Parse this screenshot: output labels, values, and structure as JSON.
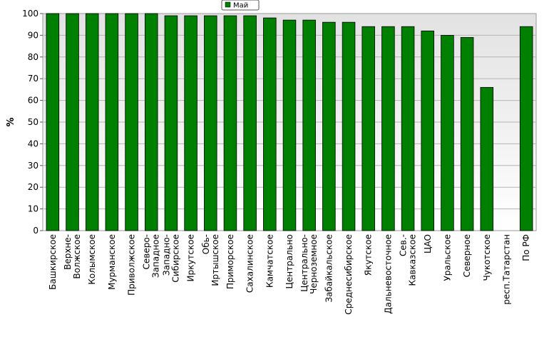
{
  "chart_data": {
    "type": "bar",
    "ylabel": "%",
    "ylim": [
      0,
      100
    ],
    "yticks": [
      0,
      10,
      20,
      30,
      40,
      50,
      60,
      70,
      80,
      90,
      100
    ],
    "grid": true,
    "legend_position": "top-center",
    "categories": [
      [
        "Башкирское"
      ],
      [
        "Верхне-",
        "Волжское"
      ],
      [
        "Колымское"
      ],
      [
        "Мурманское"
      ],
      [
        "Приволжское"
      ],
      [
        "Северо-",
        "Западное"
      ],
      [
        "Западно-",
        "Сибирское"
      ],
      [
        "Иркутское"
      ],
      [
        "Обь-",
        "Иртышское"
      ],
      [
        "Приморское"
      ],
      [
        "Сахалинское"
      ],
      [
        "Камчатское"
      ],
      [
        "Центрально"
      ],
      [
        "Центрально-",
        "Черноземное"
      ],
      [
        "Забайкальское"
      ],
      [
        "Среднесибирское"
      ],
      [
        "Якутское"
      ],
      [
        "Дальневосточное"
      ],
      [
        "Сев.-",
        "Кавказское"
      ],
      [
        "ЦАО"
      ],
      [
        "Уральское"
      ],
      [
        "Северное"
      ],
      [
        "Чукотское"
      ],
      [
        "респ.Татарстан"
      ],
      [
        "По РФ"
      ]
    ],
    "series": [
      {
        "name": "Май",
        "color": "#008000",
        "values": [
          100,
          100,
          100,
          100,
          100,
          100,
          99,
          99,
          99,
          99,
          99,
          98,
          97,
          97,
          96,
          96,
          94,
          94,
          94,
          92,
          90,
          89,
          66,
          null,
          94
        ]
      }
    ]
  }
}
